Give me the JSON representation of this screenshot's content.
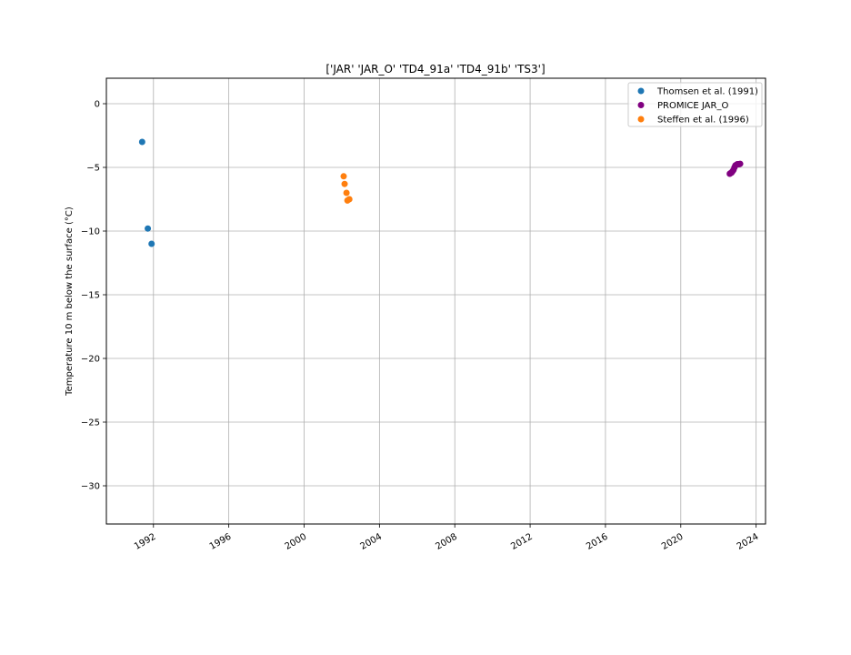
{
  "chart_data": {
    "type": "scatter",
    "title": "['JAR' 'JAR_O' 'TD4_91a' 'TD4_91b' 'TS3']",
    "xlabel": "",
    "ylabel": "Temperature 10 m below the surface (°C)",
    "x_is_date": true,
    "xlim": [
      1989.5,
      2024.5
    ],
    "ylim": [
      -33,
      2
    ],
    "x_ticks": [
      1992,
      1996,
      2000,
      2004,
      2008,
      2012,
      2016,
      2020,
      2024
    ],
    "x_tick_labels": [
      "1992",
      "1996",
      "2000",
      "2004",
      "2008",
      "2012",
      "2016",
      "2020",
      "2024"
    ],
    "y_ticks": [
      0,
      -5,
      -10,
      -15,
      -20,
      -25,
      -30
    ],
    "y_tick_labels": [
      "0",
      "−5",
      "−10",
      "−15",
      "−20",
      "−25",
      "−30"
    ],
    "grid": true,
    "legend_position": "top-right",
    "series": [
      {
        "name": "Thomsen et al. (1991)",
        "color": "#1f77b4",
        "x": [
          1991.4,
          1991.7,
          1991.9
        ],
        "y": [
          -3.0,
          -9.8,
          -11.0
        ]
      },
      {
        "name": "PROMICE JAR_O",
        "color": "#800080",
        "x": [
          2022.6,
          2022.65,
          2022.7,
          2022.75,
          2022.8,
          2022.85,
          2022.9,
          2022.95,
          2023.0,
          2023.05,
          2023.1,
          2023.15
        ],
        "y": [
          -5.5,
          -5.45,
          -5.4,
          -5.3,
          -5.2,
          -5.0,
          -4.85,
          -4.8,
          -4.75,
          -4.75,
          -4.75,
          -4.72
        ]
      },
      {
        "name": "Steffen et al. (1996)",
        "color": "#ff7f0e",
        "x": [
          2002.1,
          2002.15,
          2002.25,
          2002.3,
          2002.4
        ],
        "y": [
          -5.7,
          -6.3,
          -7.0,
          -7.6,
          -7.5
        ]
      }
    ]
  }
}
